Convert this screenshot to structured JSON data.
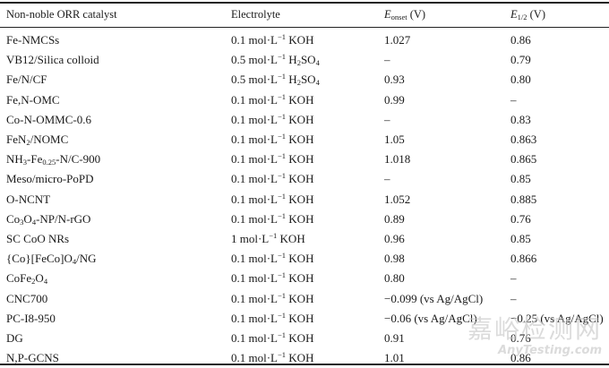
{
  "header": {
    "catalyst": "Non-noble ORR catalyst",
    "electrolyte": "Electrolyte",
    "onset_E": "E",
    "onset_sub": "onset",
    "onset_unit": " (V)",
    "half_E": "E",
    "half_sub": "1/2",
    "half_unit": " (V)"
  },
  "rows": [
    {
      "catalyst": "Fe-NMCSs",
      "electrolyte": "0.1 mol·L<sup>−1</sup> KOH",
      "onset": "1.027",
      "half": "0.86"
    },
    {
      "catalyst": "VB12/Silica colloid",
      "electrolyte": "0.5 mol·L<sup>−1</sup> H<sub>2</sub>SO<sub>4</sub>",
      "onset": "–",
      "half": "0.79"
    },
    {
      "catalyst": "Fe/N/CF",
      "electrolyte": "0.5 mol·L<sup>−1</sup> H<sub>2</sub>SO<sub>4</sub>",
      "onset": "0.93",
      "half": "0.80"
    },
    {
      "catalyst": "Fe,N-OMC",
      "electrolyte": "0.1 mol·L<sup>−1</sup> KOH",
      "onset": "0.99",
      "half": "–"
    },
    {
      "catalyst": "Co-N-OMMC-0.6",
      "electrolyte": "0.1 mol·L<sup>−1</sup> KOH",
      "onset": "–",
      "half": "0.83"
    },
    {
      "catalyst": "FeN<sub>2</sub>/NOMC",
      "electrolyte": "0.1 mol·L<sup>−1</sup> KOH",
      "onset": "1.05",
      "half": "0.863"
    },
    {
      "catalyst": "NH<sub>3</sub>-Fe<sub>0.25</sub>-N/C-900",
      "electrolyte": "0.1 mol·L<sup>−1</sup> KOH",
      "onset": "1.018",
      "half": "0.865"
    },
    {
      "catalyst": "Meso/micro-PoPD",
      "electrolyte": "0.1 mol·L<sup>−1</sup> KOH",
      "onset": "–",
      "half": "0.85"
    },
    {
      "catalyst": "O-NCNT",
      "electrolyte": "0.1 mol·L<sup>−1</sup> KOH",
      "onset": "1.052",
      "half": "0.885"
    },
    {
      "catalyst": "Co<sub>3</sub>O<sub>4</sub>-NP/N-rGO",
      "electrolyte": "0.1 mol·L<sup>−1</sup> KOH",
      "onset": "0.89",
      "half": "0.76"
    },
    {
      "catalyst": "SC CoO NRs",
      "electrolyte": "1 mol·L<sup>−1</sup> KOH",
      "onset": "0.96",
      "half": "0.85"
    },
    {
      "catalyst": "{Co}[FeCo]O<sub>4</sub>/NG",
      "electrolyte": "0.1 mol·L<sup>−1</sup> KOH",
      "onset": "0.98",
      "half": "0.866"
    },
    {
      "catalyst": "CoFe<sub>2</sub>O<sub>4</sub>",
      "electrolyte": "0.1 mol·L<sup>−1</sup> KOH",
      "onset": "0.80",
      "half": "–"
    },
    {
      "catalyst": "CNC700",
      "electrolyte": "0.1 mol·L<sup>−1</sup> KOH",
      "onset": "−0.099 (vs Ag/AgCl)",
      "half": "–"
    },
    {
      "catalyst": "PC-I8-950",
      "electrolyte": "0.1 mol·L<sup>−1</sup> KOH",
      "onset": "−0.06 (vs Ag/AgCl)",
      "half": "−0.25 (vs Ag/AgCl)"
    },
    {
      "catalyst": "DG",
      "electrolyte": "0.1 mol·L<sup>−1</sup> KOH",
      "onset": "0.91",
      "half": "0.76"
    },
    {
      "catalyst": "N,P-GCNS",
      "electrolyte": "0.1 mol·L<sup>−1</sup> KOH",
      "onset": "1.01",
      "half": "0.86"
    }
  ],
  "watermark": {
    "cn": "嘉峪检测网",
    "en": "AnyTesting.com"
  }
}
